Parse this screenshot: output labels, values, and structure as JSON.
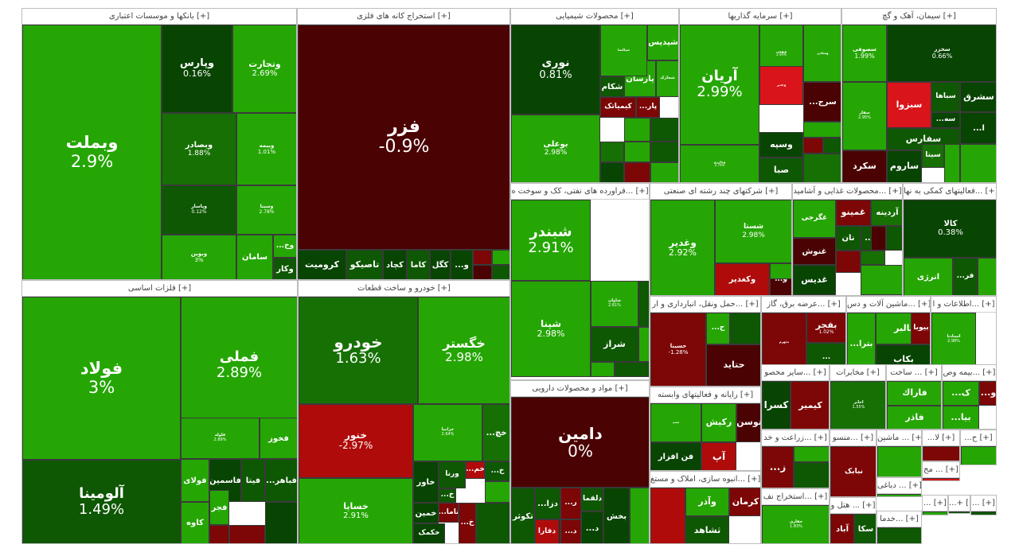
{
  "colors": {
    "pos_strong": "#25a604",
    "pos": "#1e8a05",
    "pos_mid": "#177004",
    "pos_dark": "#0e5703",
    "pos_darker": "#084402",
    "neg_dark": "#4a0202",
    "neg_mid": "#7d0606",
    "neg": "#b00b0b",
    "neg_bright": "#d9141a",
    "white": "#ffffff"
  },
  "sectors": [
    {
      "name": "بانکها و موسسات اعتباری [+]",
      "tiles": [
        {
          "n": "وبملت",
          "p": "2.9%"
        },
        {
          "n": "وپارس",
          "p": "0.16%"
        },
        {
          "n": "وتجارت",
          "p": "2.69%"
        },
        {
          "n": "وبصادر",
          "p": "1.88%"
        },
        {
          "n": "وبیمه",
          "p": "1.01%"
        },
        {
          "n": "وپاسار",
          "p": "0.12%"
        },
        {
          "n": "وسینا",
          "p": "2.78%"
        },
        {
          "n": "وبوین",
          "p": "3%"
        },
        {
          "n": "سامان",
          "p": ""
        },
        {
          "n": "...وخ",
          "p": ""
        },
        {
          "n": "وکار",
          "p": ""
        }
      ]
    },
    {
      "name": "استخراج کانه های فلزی [+]",
      "tiles": [
        {
          "n": "فزر",
          "p": "-0.9%"
        },
        {
          "n": "کروميت",
          "p": ""
        },
        {
          "n": "تاصیکو",
          "p": ""
        },
        {
          "n": "کچاد",
          "p": ""
        },
        {
          "n": "کاما",
          "p": ""
        },
        {
          "n": "کگل",
          "p": ""
        },
        {
          "n": "...و",
          "p": ""
        }
      ]
    },
    {
      "name": "محصولات شیمیایی [+]",
      "tiles": [
        {
          "n": "نوری",
          "p": "0.81%"
        },
        {
          "n": "بوعلی",
          "p": "2.98%"
        },
        {
          "n": "شپدیس",
          "p": ""
        },
        {
          "n": "پارسان",
          "p": ""
        },
        {
          "n": "شکام",
          "p": ""
        },
        {
          "n": "کیمیاتک",
          "p": ""
        },
        {
          "n": "...پار",
          "p": ""
        },
        {
          "n": "شپاکسا",
          "p": ""
        },
        {
          "n": "شخارک",
          "p": ""
        }
      ]
    },
    {
      "name": "سرمایه گذاریها [+]",
      "tiles": [
        {
          "n": "آریان",
          "p": "2.99%"
        },
        {
          "n": "وبهمن",
          "p": "2.95%"
        },
        {
          "n": "وغدیر",
          "p": ""
        },
        {
          "n": "...سرج",
          "p": ""
        },
        {
          "n": "وسپه",
          "p": ""
        },
        {
          "n": "صبا",
          "p": ""
        },
        {
          "n": "وخارزم",
          "p": "2.74%"
        },
        {
          "n": "ومعادن",
          "p": ""
        }
      ]
    },
    {
      "name": "سیمان، آهک و گچ [+]",
      "tiles": [
        {
          "n": "سصوفی",
          "p": "1.99%"
        },
        {
          "n": "سخزر",
          "p": "0.66%"
        },
        {
          "n": "سفار",
          "p": "2.95%"
        },
        {
          "n": "سبزوا",
          "p": ""
        },
        {
          "n": "سباها",
          "p": ""
        },
        {
          "n": "سشرق",
          "p": ""
        },
        {
          "n": "سفارس",
          "p": ""
        },
        {
          "n": "...سه",
          "p": ""
        },
        {
          "n": "...ا",
          "p": ""
        },
        {
          "n": "سیتا",
          "p": ""
        },
        {
          "n": "سکرد",
          "p": ""
        },
        {
          "n": "ساروم",
          "p": ""
        }
      ]
    },
    {
      "name": "فراورده های نفتی، کک و سوخت ه... [+]",
      "tiles": [
        {
          "n": "شبندر",
          "p": "2.91%"
        },
        {
          "n": "شپنا",
          "p": "2.98%"
        },
        {
          "n": "شاوان",
          "p": "2.61%"
        },
        {
          "n": "شراز",
          "p": ""
        }
      ]
    },
    {
      "name": "شرکتهای چند رشته ای صنعتی [+]",
      "tiles": [
        {
          "n": "وغدیر",
          "p": "2.92%"
        },
        {
          "n": "شستا",
          "p": "2.98%"
        },
        {
          "n": "...و",
          "p": ""
        },
        {
          "n": "وکغدیر",
          "p": ""
        }
      ]
    },
    {
      "name": "محصولات غذایی و آشامید... [+]",
      "tiles": [
        {
          "n": "غگرجی",
          "p": ""
        },
        {
          "n": "غمینو",
          "p": ""
        },
        {
          "n": "آردینه",
          "p": ""
        },
        {
          "n": "نان",
          "p": ""
        },
        {
          "n": "...غا",
          "p": ""
        },
        {
          "n": "غنوش",
          "p": ""
        },
        {
          "n": "غدیس",
          "p": ""
        }
      ]
    },
    {
      "name": "فعالیتهای کمکی به نها... [+]",
      "tiles": [
        {
          "n": "کالا",
          "p": "0.38%"
        },
        {
          "n": "انرژی",
          "p": ""
        },
        {
          "n": "...فر",
          "p": ""
        }
      ]
    },
    {
      "name": "فلزات اساسی [+]",
      "tiles": [
        {
          "n": "فولاد",
          "p": "3%"
        },
        {
          "n": "فملی",
          "p": "2.89%"
        },
        {
          "n": "آلومينا",
          "p": "1.49%"
        },
        {
          "n": "فلوله",
          "p": "2.89%"
        },
        {
          "n": "فخوز",
          "p": ""
        },
        {
          "n": "فولای",
          "p": ""
        },
        {
          "n": "فاسمین",
          "p": ""
        },
        {
          "n": "فیتا",
          "p": ""
        },
        {
          "n": "...فباهر",
          "p": ""
        },
        {
          "n": "کاوه",
          "p": ""
        },
        {
          "n": "فجر",
          "p": ""
        }
      ]
    },
    {
      "name": "خودرو و ساخت قطعات [+]",
      "tiles": [
        {
          "n": "خودرو",
          "p": "1.63%"
        },
        {
          "n": "خگستر",
          "p": "2.98%"
        },
        {
          "n": "خنور",
          "p": "-2.97%"
        },
        {
          "n": "خساپا",
          "p": "2.91%"
        },
        {
          "n": "خزامیا",
          "p": "2.64%"
        },
        {
          "n": "...خچ",
          "p": ""
        },
        {
          "n": "خاور",
          "p": ""
        },
        {
          "n": "ورنا",
          "p": ""
        },
        {
          "n": "...خم",
          "p": ""
        },
        {
          "n": "...خ",
          "p": ""
        },
        {
          "n": "...خ",
          "p": ""
        },
        {
          "n": "...ناما",
          "p": ""
        },
        {
          "n": "خمین",
          "p": ""
        },
        {
          "n": "...خ",
          "p": ""
        },
        {
          "n": "...خ",
          "p": ""
        },
        {
          "n": "خکمک",
          "p": ""
        }
      ]
    },
    {
      "name": "مواد و محصولات دارویی [+]",
      "tiles": [
        {
          "n": "دامین",
          "p": "0%"
        },
        {
          "n": "دلقما",
          "p": ""
        },
        {
          "n": "...د",
          "p": ""
        },
        {
          "n": "...دزا",
          "p": ""
        },
        {
          "n": "...ده",
          "p": ""
        },
        {
          "n": "...ر",
          "p": ""
        },
        {
          "n": "تکوثر",
          "p": ""
        },
        {
          "n": "دفارا",
          "p": ""
        },
        {
          "n": "...د",
          "p": ""
        },
        {
          "n": "بخش",
          "p": ""
        }
      ]
    },
    {
      "name": "حمل ونقل، انبارداری و ار... [+]",
      "tiles": [
        {
          "n": "حسینا",
          "p": "-1.28%"
        },
        {
          "n": "حتاید",
          "p": ""
        },
        {
          "n": "...ح",
          "p": ""
        }
      ]
    },
    {
      "name": "عرضه برق، گاز... [+]",
      "tiles": [
        {
          "n": "بجهرم",
          "p": ""
        },
        {
          "n": "بفجر",
          "p": "1.02%"
        },
        {
          "n": "...",
          "p": ""
        }
      ]
    },
    {
      "name": "ماشین آلات و دس... [+]",
      "tiles": [
        {
          "n": "بالبر",
          "p": ""
        },
        {
          "n": "بکاب",
          "p": ""
        },
        {
          "n": "...بترا",
          "p": ""
        },
        {
          "n": "بیوبا",
          "p": ""
        }
      ]
    },
    {
      "name": "اطلاعات و ا... [+]",
      "tiles": [
        {
          "n": "اسنادنا",
          "p": "2.98%"
        }
      ]
    },
    {
      "name": "رایانه و فعالیتهای وابسته [+]",
      "tiles": [
        {
          "n": "سپ",
          "p": ""
        },
        {
          "n": "رکیش",
          "p": ""
        },
        {
          "n": "توسن",
          "p": ""
        },
        {
          "n": "فن افزار",
          "p": ""
        },
        {
          "n": "آپ",
          "p": ""
        }
      ]
    },
    {
      "name": "سایر محصو... [+]",
      "tiles": [
        {
          "n": "کیمیر",
          "p": ""
        },
        {
          "n": "کسرا",
          "p": ""
        }
      ]
    },
    {
      "name": "مخابرات [+]",
      "tiles": [
        {
          "n": "اخابر",
          "p": "1.55%"
        }
      ]
    },
    {
      "name": "ساخت ... [+]",
      "tiles": [
        {
          "n": "فاراك",
          "p": ""
        },
        {
          "n": "فاذر",
          "p": ""
        }
      ]
    },
    {
      "name": "بیمه وص... [+]",
      "tiles": [
        {
          "n": "...و",
          "p": ""
        },
        {
          "n": "...ک",
          "p": ""
        },
        {
          "n": "...بیا",
          "p": ""
        }
      ]
    },
    {
      "name": "انبوه سازی، املاک و مستغ... [+]",
      "tiles": [
        {
          "n": "وآذر",
          "p": ""
        },
        {
          "n": "ثشاهد",
          "p": ""
        },
        {
          "n": "کرمان",
          "p": ""
        }
      ]
    },
    {
      "name": "زراعت و خد... [+]",
      "tiles": [
        {
          "n": "...ز",
          "p": ""
        }
      ]
    },
    {
      "name": "منسو... [+]",
      "tiles": [
        {
          "n": "نبابک",
          "p": ""
        }
      ]
    },
    {
      "name": "ماشین ... [+]",
      "tiles": []
    },
    {
      "name": "...لا [+]",
      "tiles": []
    },
    {
      "name": "...ح [+]",
      "tiles": []
    },
    {
      "name": "استخراج نف... [+]",
      "tiles": [
        {
          "n": "حفاری",
          "p": "1.83%"
        }
      ]
    },
    {
      "name": "هتل و ... [+]",
      "tiles": [
        {
          "n": "سکا",
          "p": ""
        },
        {
          "n": "آباد",
          "p": ""
        }
      ]
    },
    {
      "name": "دباغی ... [+]",
      "tiles": []
    },
    {
      "name": "مح ... [+]",
      "tiles": []
    },
    {
      "name": "خدما... [+]",
      "tiles": []
    },
    {
      "name": "... [+]",
      "tiles": []
    },
    {
      "name": "...+ [+]",
      "tiles": []
    },
    {
      "name": "... [+]",
      "tiles": []
    }
  ]
}
